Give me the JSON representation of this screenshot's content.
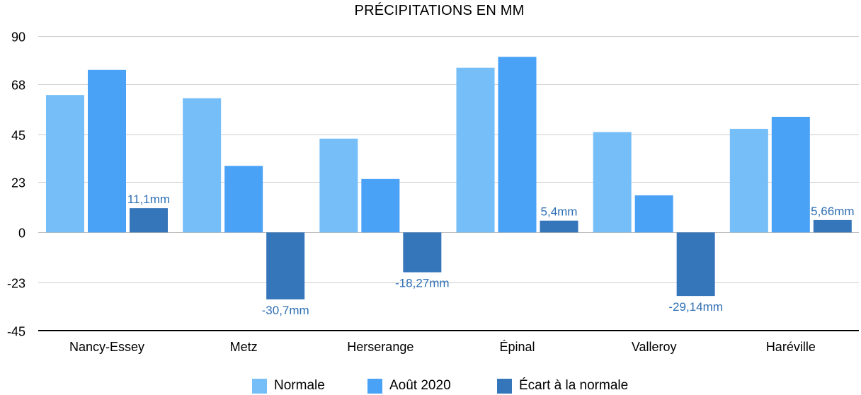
{
  "chart_data": {
    "type": "bar",
    "title": "PRÉCIPITATIONS EN MM",
    "categories": [
      "Nancy-Essey",
      "Metz",
      "Herserange",
      "Épinal",
      "Valleroy",
      "Haréville"
    ],
    "series": [
      {
        "name": "Normale",
        "color": "#75BEF8",
        "values": [
          63,
          61.5,
          43,
          75.5,
          46,
          47.5
        ]
      },
      {
        "name": "Août 2020",
        "color": "#4AA2F7",
        "values": [
          74.5,
          30.5,
          24.5,
          80.5,
          17,
          53
        ]
      },
      {
        "name": "Écart à la normale",
        "color": "#3575BA",
        "values": [
          11.1,
          -30.7,
          -18.27,
          5.4,
          -29.14,
          5.66
        ],
        "labels": [
          "11,1mm",
          "-30,7mm",
          "-18,27mm",
          "5,4mm",
          "-29,14mm",
          "5,66mm"
        ]
      }
    ],
    "yticks": [
      "90",
      "68",
      "45",
      "23",
      "0",
      "-23",
      "-45"
    ],
    "ytick_values": [
      90,
      68,
      45,
      23,
      0,
      -23,
      -45
    ],
    "ylim": [
      -45,
      90
    ],
    "grid": true,
    "legend_position": "bottom"
  }
}
